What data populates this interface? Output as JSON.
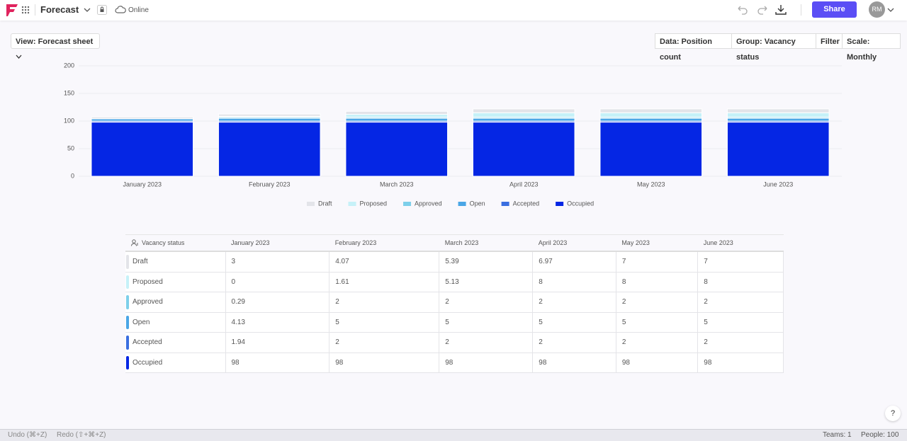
{
  "header": {
    "title": "Forecast",
    "status": "Online",
    "share": "Share",
    "avatar": "RM"
  },
  "toolbar": {
    "view": "View: Forecast sheet",
    "data": "Data: Position count",
    "group": "Group: Vacancy status",
    "filter": "Filter",
    "scale": "Scale: Monthly"
  },
  "chart_data": {
    "type": "bar",
    "stacked": true,
    "categories": [
      "January 2023",
      "February 2023",
      "March 2023",
      "April 2023",
      "May 2023",
      "June 2023"
    ],
    "series": [
      {
        "name": "Draft",
        "color": "#e3e4e9",
        "values": [
          3,
          4.07,
          5.39,
          6.97,
          7,
          7
        ]
      },
      {
        "name": "Proposed",
        "color": "#c6f1f8",
        "values": [
          0,
          1.61,
          5.13,
          8,
          8,
          8
        ]
      },
      {
        "name": "Approved",
        "color": "#7dcfea",
        "values": [
          0.29,
          2,
          2,
          2,
          2,
          2
        ]
      },
      {
        "name": "Open",
        "color": "#4aa6e6",
        "values": [
          4.13,
          5,
          5,
          5,
          5,
          5
        ]
      },
      {
        "name": "Accepted",
        "color": "#3a6ee0",
        "values": [
          1.94,
          2,
          2,
          2,
          2,
          2
        ]
      },
      {
        "name": "Occupied",
        "color": "#0526e4",
        "values": [
          98,
          98,
          98,
          98,
          98,
          98
        ]
      }
    ],
    "ylim": [
      0,
      200
    ],
    "yticks": [
      0,
      50,
      100,
      150,
      200
    ],
    "grid": true,
    "legend": "bottom"
  },
  "table": {
    "header": "Vacancy status"
  },
  "footer": {
    "undo": "Undo (⌘+Z)",
    "redo": "Redo (⇧+⌘+Z)",
    "teams": "Teams: 1",
    "people": "People: 100",
    "help": "?"
  }
}
